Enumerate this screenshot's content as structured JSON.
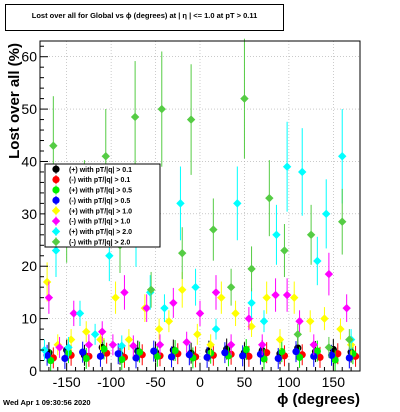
{
  "title": "Lost over all for Global vs ϕ (degrees) at | η | <= 1.0 at pT > 0.11",
  "footer": "Wed Apr  1 09:30:56 2020",
  "chart_data": {
    "type": "scatter",
    "title": "Lost over all for Global vs ϕ (degrees) at | η | <= 1.0 at pT > 0.11",
    "xlabel": "ϕ (degrees)",
    "ylabel": "Lost over all (%)",
    "xlim": [
      -180,
      180
    ],
    "ylim": [
      0,
      63
    ],
    "xticks": [
      -150,
      -100,
      -50,
      0,
      50,
      100,
      150
    ],
    "yticks": [
      0,
      10,
      20,
      30,
      40,
      50,
      60
    ],
    "grid": true,
    "legend_position": "left-middle",
    "series": [
      {
        "name": "(+) with pT/|q| > 0.1",
        "color": "#000000",
        "marker": "circle",
        "x": [
          -170,
          -150,
          -130,
          -110,
          -90,
          -70,
          -50,
          -30,
          -10,
          10,
          30,
          50,
          70,
          90,
          110,
          130,
          150,
          170
        ],
        "y": [
          3.5,
          4.0,
          3.0,
          4.5,
          3.2,
          3.8,
          3.6,
          4.0,
          3.4,
          3.8,
          4.2,
          3.5,
          3.9,
          3.3,
          4.4,
          3.7,
          4.1,
          3.6
        ]
      },
      {
        "name": "(-) with pT/|q| > 0.1",
        "color": "#ff0000",
        "marker": "circle",
        "x": [
          -165,
          -145,
          -125,
          -105,
          -85,
          -65,
          -45,
          -25,
          -5,
          15,
          35,
          55,
          75,
          95,
          115,
          135,
          155,
          175
        ],
        "y": [
          2.5,
          3.0,
          2.8,
          3.4,
          2.6,
          3.1,
          2.9,
          3.3,
          2.7,
          3.0,
          3.2,
          2.8,
          3.5,
          2.9,
          3.1,
          2.6,
          3.3,
          2.8
        ]
      },
      {
        "name": "(+) with pT/|q| > 0.5",
        "color": "#00ee00",
        "marker": "circle",
        "x": [
          -168,
          -148,
          -128,
          -108,
          -88,
          -68,
          -48,
          -28,
          -8,
          12,
          32,
          52,
          72,
          92,
          112,
          132,
          152,
          172
        ],
        "y": [
          2.0,
          3.5,
          2.4,
          4.2,
          2.2,
          3.6,
          2.8,
          3.9,
          2.5,
          3.4,
          2.9,
          4.1,
          2.3,
          3.7,
          2.6,
          3.8,
          2.1,
          3.3
        ]
      },
      {
        "name": "(-) with pT/|q| > 0.5",
        "color": "#0000ff",
        "marker": "circle",
        "x": [
          -172,
          -152,
          -132,
          -112,
          -92,
          -72,
          -52,
          -32,
          -12,
          8,
          28,
          48,
          68,
          88,
          108,
          128,
          148,
          168
        ],
        "y": [
          3.0,
          2.4,
          3.6,
          2.8,
          3.3,
          2.5,
          3.8,
          2.7,
          3.1,
          2.6,
          3.5,
          2.9,
          3.2,
          2.4,
          3.7,
          2.8,
          3.0,
          2.5
        ]
      },
      {
        "name": "(+) with pT/|q| > 1.0",
        "color": "#ffff00",
        "marker": "diamond",
        "x": [
          -172,
          -160,
          -145,
          -128,
          -112,
          -95,
          -80,
          -62,
          -46,
          -35,
          -20,
          -3,
          12,
          24,
          40,
          58,
          75,
          90,
          106,
          124,
          140,
          158,
          170
        ],
        "y": [
          17,
          5,
          6,
          7.5,
          6,
          14,
          6,
          12,
          8,
          9.5,
          15.5,
          7,
          5,
          14,
          11,
          8.5,
          14,
          6,
          14,
          9.5,
          10,
          8,
          5
        ]
      },
      {
        "name": "(-) with pT/|q| > 1.0",
        "color": "#ff00ff",
        "marker": "diamond",
        "x": [
          -170,
          -158,
          -142,
          -125,
          -110,
          -98,
          -85,
          -75,
          -60,
          -45,
          -30,
          -15,
          0,
          18,
          35,
          55,
          70,
          85,
          98,
          112,
          128,
          145,
          165
        ],
        "y": [
          14,
          4.5,
          11,
          5,
          7.5,
          5,
          15,
          4.8,
          12,
          5,
          13,
          5.5,
          11,
          15,
          5,
          10,
          5,
          14.5,
          14.5,
          9.5,
          5,
          18.5,
          12
        ]
      },
      {
        "name": "(+) with pT/|q| > 2.0",
        "color": "#00ffff",
        "marker": "diamond",
        "x": [
          -175,
          -162,
          -148,
          -135,
          -118,
          -102,
          -88,
          -72,
          -56,
          -40,
          -22,
          -5,
          18,
          42,
          58,
          72,
          86,
          98,
          115,
          132,
          142,
          160,
          170
        ],
        "y": [
          4,
          23,
          4.5,
          11,
          7,
          22,
          4.8,
          25.5,
          15,
          12,
          32,
          16,
          8,
          32,
          13,
          9.5,
          26,
          39,
          38,
          21,
          30,
          41,
          6
        ]
      },
      {
        "name": "(-) with pT/|q| > 2.0",
        "color": "#55cc44",
        "marker": "diamond",
        "x": [
          -165,
          -150,
          -130,
          -106,
          -90,
          -73,
          -55,
          -43,
          -20,
          -10,
          15,
          35,
          50,
          58,
          78,
          95,
          110,
          125,
          145,
          160,
          168
        ],
        "y": [
          43,
          26.5,
          33,
          41,
          24,
          48.5,
          15.5,
          50,
          22.5,
          48,
          27,
          16,
          52,
          19.5,
          33,
          23,
          7,
          26,
          4.5,
          28.5,
          6
        ]
      }
    ]
  },
  "legend_markers": {
    "circle_series": [
      0,
      1,
      2,
      3
    ],
    "diamond_series": [
      4,
      5,
      6,
      7
    ]
  }
}
